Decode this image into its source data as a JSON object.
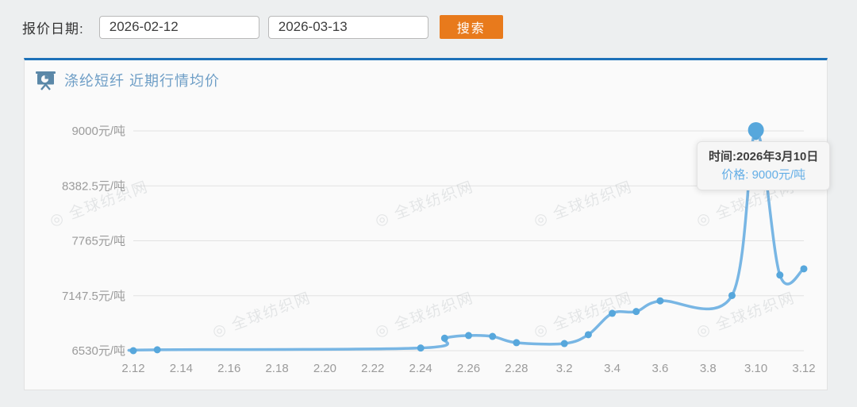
{
  "filter_bar": {
    "label": "报价日期:",
    "start_date": "2026-02-12",
    "end_date": "2026-03-13",
    "search_label": "搜索"
  },
  "panel": {
    "title": "涤纶短纤 近期行情均价",
    "watermark_text": "全球纺织网"
  },
  "tooltip": {
    "time_text": "时间:2026年3月10日",
    "price_label": "价格:",
    "price_value": "9000元/吨"
  },
  "chart_data": {
    "type": "line",
    "title": "涤纶短纤 近期行情均价",
    "unit": "元/吨",
    "x_dates": [
      "2.12",
      "2.13",
      "2.24",
      "2.25",
      "2.26",
      "2.27",
      "2.28",
      "3.2",
      "3.3",
      "3.4",
      "3.5",
      "3.6",
      "3.9",
      "3.10",
      "3.11",
      "3.12"
    ],
    "day_offsets": [
      0,
      1,
      12,
      13,
      14,
      15,
      16,
      18,
      19,
      20,
      21,
      22,
      25,
      26,
      27,
      28
    ],
    "values": [
      6530,
      6540,
      6560,
      6670,
      6700,
      6690,
      6620,
      6610,
      6710,
      6950,
      6970,
      7090,
      7150,
      9000,
      7380,
      7450
    ],
    "axis_total_days": 28,
    "x_tick_labels": [
      "2.12",
      "2.14",
      "2.16",
      "2.18",
      "2.20",
      "2.22",
      "2.24",
      "2.26",
      "2.28",
      "3.2",
      "3.4",
      "3.6",
      "3.8",
      "3.10",
      "3.12"
    ],
    "x_tick_day_offsets": [
      0,
      2,
      4,
      6,
      8,
      10,
      12,
      14,
      16,
      18,
      20,
      22,
      24,
      26,
      28
    ],
    "y_tick_labels": [
      "9000元/吨",
      "8382.5元/吨",
      "7765元/吨",
      "7147.5元/吨",
      "6530元/吨"
    ],
    "y_tick_values": [
      9000,
      8382.5,
      7765,
      7147.5,
      6530
    ],
    "ylim": [
      6530,
      9000
    ],
    "grid": true,
    "smooth": true,
    "highlight": {
      "index": 13,
      "date_label": "2026年3月10日",
      "value": 9000
    },
    "colors": {
      "line": "#78b6e4",
      "point": "#57a7dc",
      "grid": "#e1e1e1",
      "axis_text": "#9b9b9b",
      "accent_blue": "#1d71b8",
      "button_orange": "#e87a1c",
      "title_blue": "#6e9ec6",
      "tooltip_price": "#64aee6"
    }
  }
}
